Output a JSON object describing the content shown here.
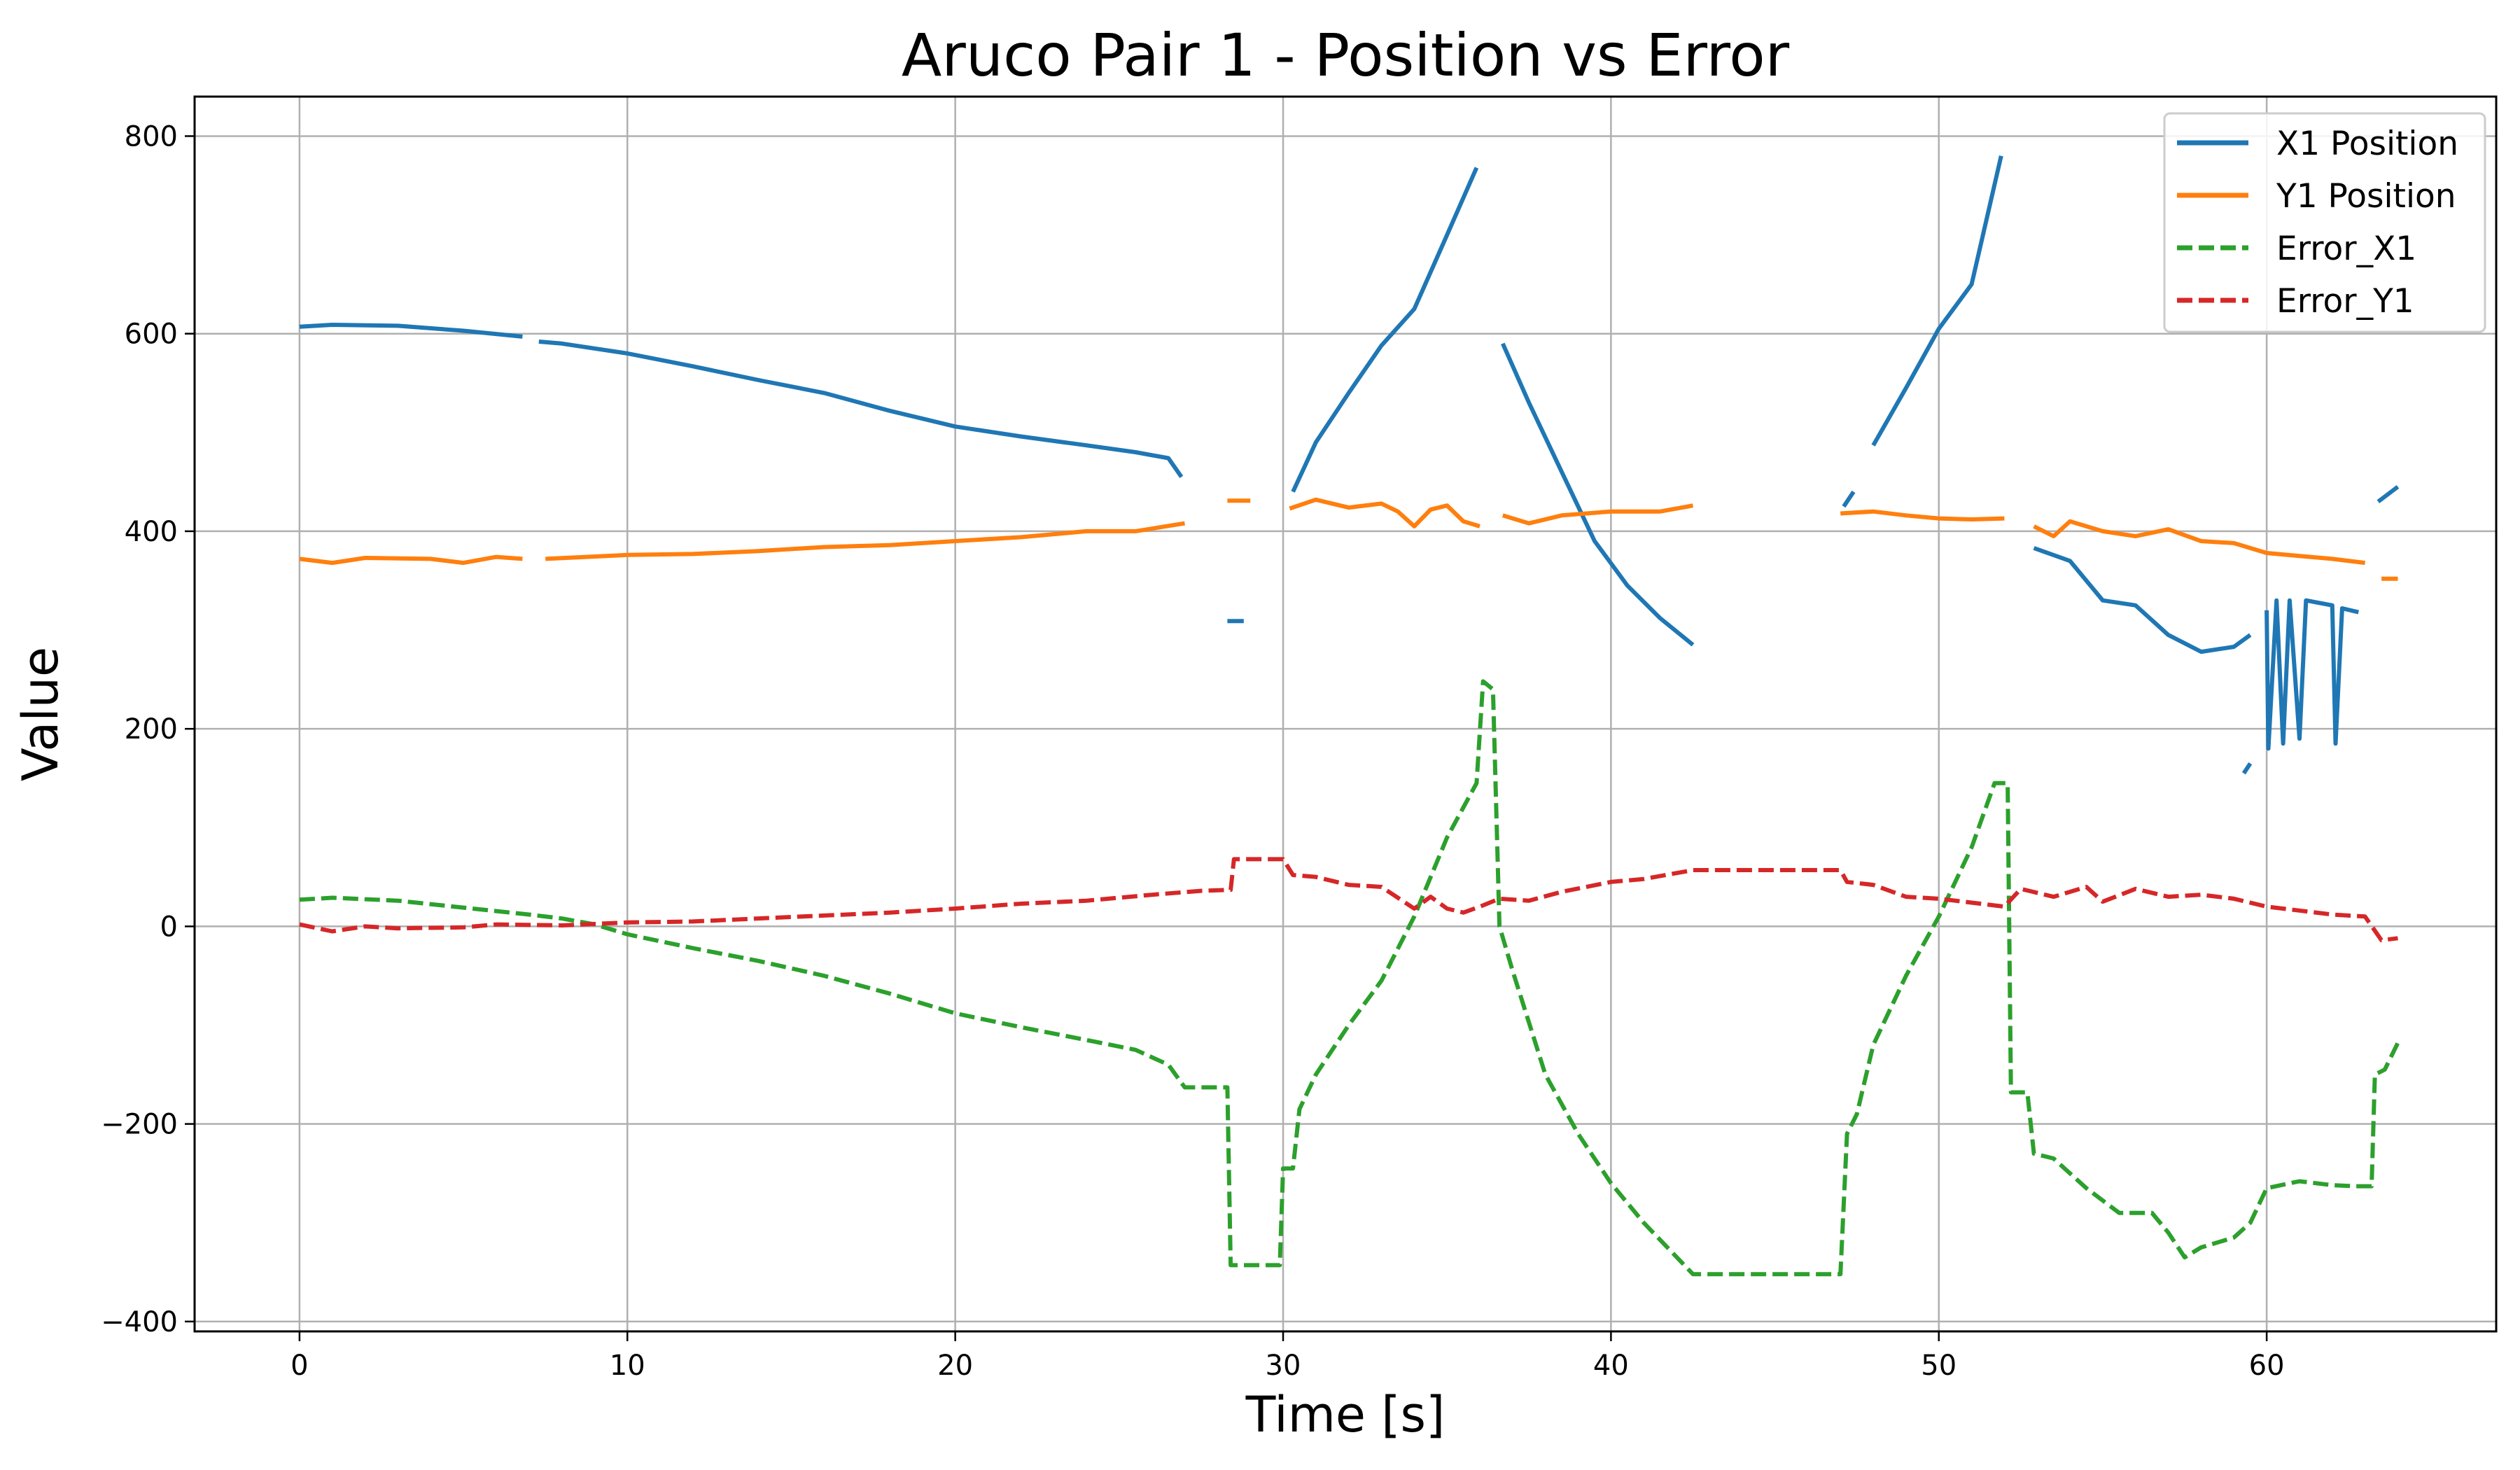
{
  "chart_data": {
    "type": "line",
    "title": "Aruco Pair 1 - Position vs Error",
    "xlabel": "Time [s]",
    "ylabel": "Value",
    "xlim": [
      -3.2,
      67
    ],
    "ylim": [
      -410,
      840
    ],
    "xticks": [
      0,
      10,
      20,
      30,
      40,
      50,
      60
    ],
    "yticks": [
      -400,
      -200,
      0,
      200,
      400,
      600,
      800
    ],
    "grid": true,
    "legend_position": "upper right",
    "series": [
      {
        "name": "X1 Position",
        "color": "#1f77b4",
        "style": "solid",
        "segments": [
          [
            [
              0,
              607
            ],
            [
              1,
              609
            ],
            [
              3,
              608
            ],
            [
              5,
              603
            ],
            [
              6.8,
              597
            ]
          ],
          [
            [
              7.3,
              592
            ],
            [
              8,
              590
            ],
            [
              10,
              580
            ],
            [
              12,
              567
            ],
            [
              14,
              553
            ],
            [
              16,
              540
            ],
            [
              18,
              522
            ],
            [
              20,
              506
            ],
            [
              22,
              496
            ],
            [
              24,
              487
            ],
            [
              25.5,
              480
            ],
            [
              26.5,
              474
            ],
            [
              26.9,
              455
            ]
          ],
          [
            [
              28.3,
              309
            ],
            [
              28.8,
              309
            ]
          ],
          [
            [
              30.3,
              440
            ],
            [
              31,
              490
            ],
            [
              32,
              540
            ],
            [
              33,
              588
            ],
            [
              34,
              625
            ],
            [
              35,
              700
            ],
            [
              35.9,
              768
            ]
          ],
          [
            [
              36.7,
              590
            ],
            [
              37.5,
              530
            ],
            [
              38.5,
              460
            ],
            [
              39.5,
              390
            ],
            [
              40.5,
              345
            ],
            [
              41.5,
              312
            ],
            [
              42.5,
              285
            ]
          ],
          [
            [
              47.1,
              425
            ],
            [
              47.4,
              440
            ]
          ],
          [
            [
              48,
              487
            ],
            [
              49,
              545
            ],
            [
              50,
              605
            ],
            [
              51,
              650
            ],
            [
              51.9,
              780
            ]
          ],
          [
            [
              52.9,
              383
            ],
            [
              54,
              370
            ],
            [
              55,
              330
            ],
            [
              56,
              325
            ],
            [
              57,
              295
            ],
            [
              58,
              278
            ],
            [
              59,
              283
            ],
            [
              59.5,
              295
            ]
          ],
          [
            [
              59.3,
              155
            ],
            [
              59.5,
              165
            ]
          ],
          [
            [
              60,
              320
            ],
            [
              60.05,
              180
            ],
            [
              60.3,
              330
            ],
            [
              60.5,
              185
            ],
            [
              60.7,
              330
            ],
            [
              61,
              190
            ],
            [
              61.2,
              330
            ],
            [
              62,
              325
            ],
            [
              62.1,
              185
            ],
            [
              62.3,
              322
            ],
            [
              62.8,
              318
            ]
          ],
          [
            [
              63.4,
              430
            ],
            [
              64,
              445
            ]
          ]
        ]
      },
      {
        "name": "Y1 Position",
        "color": "#ff7f0e",
        "style": "solid",
        "segments": [
          [
            [
              0,
              372
            ],
            [
              1,
              368
            ],
            [
              2,
              373
            ],
            [
              4,
              372
            ],
            [
              5,
              368
            ],
            [
              6,
              374
            ],
            [
              6.8,
              372
            ]
          ],
          [
            [
              7.5,
              372
            ],
            [
              10,
              376
            ],
            [
              12,
              377
            ],
            [
              14,
              380
            ],
            [
              16,
              384
            ],
            [
              18,
              386
            ],
            [
              20,
              390
            ],
            [
              22,
              394
            ],
            [
              24,
              400
            ],
            [
              25.5,
              400
            ],
            [
              27,
              408
            ]
          ],
          [
            [
              28.3,
              431
            ],
            [
              29,
              431
            ]
          ],
          [
            [
              30.2,
              423
            ],
            [
              31,
              432
            ],
            [
              32,
              424
            ],
            [
              33,
              428
            ],
            [
              33.5,
              420
            ],
            [
              34,
              405
            ],
            [
              34.5,
              422
            ],
            [
              35,
              426
            ],
            [
              35.5,
              410
            ],
            [
              36,
              405
            ]
          ],
          [
            [
              36.7,
              416
            ],
            [
              37.5,
              408
            ],
            [
              38.5,
              416
            ],
            [
              40,
              420
            ],
            [
              41.5,
              420
            ],
            [
              42.5,
              426
            ]
          ],
          [
            [
              47,
              418
            ],
            [
              48,
              420
            ],
            [
              49,
              416
            ],
            [
              50,
              413
            ],
            [
              51,
              412
            ],
            [
              52,
              413
            ]
          ],
          [
            [
              52.9,
              405
            ],
            [
              53.5,
              395
            ],
            [
              54,
              410
            ],
            [
              55,
              400
            ],
            [
              56,
              395
            ],
            [
              57,
              402
            ],
            [
              58,
              390
            ],
            [
              59,
              388
            ],
            [
              60,
              378
            ],
            [
              61,
              375
            ],
            [
              62,
              372
            ],
            [
              63,
              368
            ]
          ],
          [
            [
              63.5,
              352
            ],
            [
              64,
              352
            ]
          ]
        ]
      },
      {
        "name": "Error_X1",
        "color": "#2ca02c",
        "style": "dashed",
        "segments": [
          [
            [
              0,
              27
            ],
            [
              1,
              29
            ],
            [
              3,
              26
            ],
            [
              5,
              19
            ],
            [
              7,
              12
            ],
            [
              8,
              8
            ],
            [
              9,
              2
            ],
            [
              10,
              -8
            ],
            [
              12,
              -22
            ],
            [
              14,
              -35
            ],
            [
              16,
              -50
            ],
            [
              18,
              -68
            ],
            [
              20,
              -88
            ],
            [
              22,
              -102
            ],
            [
              24,
              -115
            ],
            [
              25.5,
              -125
            ],
            [
              26.5,
              -140
            ],
            [
              27,
              -163
            ],
            [
              28.3,
              -163
            ],
            [
              28.4,
              -343
            ],
            [
              29.9,
              -343
            ],
            [
              30,
              -245
            ],
            [
              30.3,
              -245
            ],
            [
              30.5,
              -185
            ],
            [
              31,
              -150
            ],
            [
              32,
              -100
            ],
            [
              33,
              -55
            ],
            [
              34,
              10
            ],
            [
              35,
              90
            ],
            [
              35.9,
              145
            ],
            [
              36.1,
              248
            ],
            [
              36.4,
              240
            ],
            [
              36.6,
              0
            ],
            [
              37,
              -45
            ],
            [
              38,
              -150
            ],
            [
              39,
              -210
            ],
            [
              40,
              -260
            ],
            [
              41,
              -300
            ],
            [
              42.5,
              -352
            ],
            [
              47,
              -352
            ],
            [
              47.2,
              -210
            ],
            [
              47.5,
              -190
            ],
            [
              48,
              -120
            ],
            [
              49,
              -50
            ],
            [
              50,
              10
            ],
            [
              51,
              80
            ],
            [
              51.7,
              145
            ],
            [
              52.1,
              145
            ],
            [
              52.2,
              -168
            ],
            [
              52.7,
              -168
            ],
            [
              52.9,
              -230
            ],
            [
              53.5,
              -235
            ],
            [
              54.5,
              -265
            ],
            [
              55.5,
              -290
            ],
            [
              56.5,
              -290
            ],
            [
              57,
              -310
            ],
            [
              57.5,
              -335
            ],
            [
              58,
              -325
            ],
            [
              59,
              -315
            ],
            [
              59.5,
              -300
            ],
            [
              60,
              -265
            ],
            [
              61,
              -258
            ],
            [
              62,
              -262
            ],
            [
              62.7,
              -263
            ],
            [
              63.2,
              -263
            ],
            [
              63.3,
              -150
            ],
            [
              63.6,
              -145
            ],
            [
              64,
              -118
            ]
          ]
        ]
      },
      {
        "name": "Error_Y1",
        "color": "#d62728",
        "style": "dashed",
        "segments": [
          [
            [
              0,
              2
            ],
            [
              1,
              -5
            ],
            [
              2,
              0
            ],
            [
              3,
              -2
            ],
            [
              5,
              -1
            ],
            [
              6,
              2
            ],
            [
              8,
              1
            ],
            [
              10,
              4
            ],
            [
              12,
              5
            ],
            [
              14,
              8
            ],
            [
              16,
              11
            ],
            [
              18,
              14
            ],
            [
              20,
              18
            ],
            [
              22,
              23
            ],
            [
              24,
              26
            ],
            [
              26,
              32
            ],
            [
              27.5,
              36
            ],
            [
              28.4,
              37
            ],
            [
              28.5,
              68
            ],
            [
              30,
              68
            ],
            [
              30.3,
              52
            ],
            [
              31,
              50
            ],
            [
              32,
              42
            ],
            [
              33,
              40
            ],
            [
              34,
              18
            ],
            [
              34.5,
              30
            ],
            [
              35,
              18
            ],
            [
              35.5,
              14
            ],
            [
              36,
              20
            ],
            [
              36.6,
              28
            ],
            [
              37.5,
              26
            ],
            [
              38.5,
              35
            ],
            [
              40,
              45
            ],
            [
              41,
              48
            ],
            [
              42.5,
              57
            ],
            [
              47,
              57
            ],
            [
              47.2,
              45
            ],
            [
              48,
              42
            ],
            [
              49,
              30
            ],
            [
              50,
              28
            ],
            [
              51,
              24
            ],
            [
              52,
              20
            ],
            [
              52.5,
              38
            ],
            [
              53.5,
              30
            ],
            [
              54.5,
              40
            ],
            [
              55,
              25
            ],
            [
              56,
              38
            ],
            [
              57,
              30
            ],
            [
              58,
              32
            ],
            [
              59,
              28
            ],
            [
              60,
              20
            ],
            [
              61,
              16
            ],
            [
              62,
              12
            ],
            [
              63,
              10
            ],
            [
              63.5,
              -14
            ],
            [
              64,
              -12
            ]
          ]
        ]
      }
    ]
  }
}
